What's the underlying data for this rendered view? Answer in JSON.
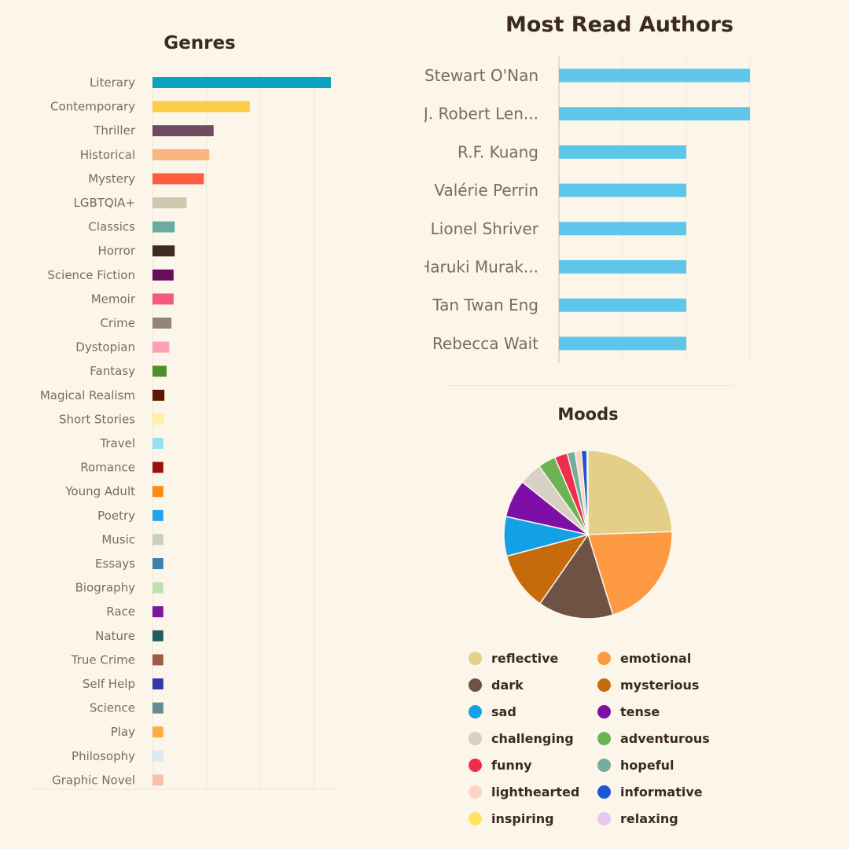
{
  "chart_data": [
    {
      "type": "bar",
      "orientation": "horizontal",
      "title": "Genres",
      "grid": true,
      "xlim": [
        0,
        33
      ],
      "categories": [
        "Literary",
        "Contemporary",
        "Thriller",
        "Historical",
        "Mystery",
        "LGBTQIA+",
        "Classics",
        "Horror",
        "Science Fiction",
        "Memoir",
        "Crime",
        "Dystopian",
        "Fantasy",
        "Magical Realism",
        "Short Stories",
        "Travel",
        "Romance",
        "Young Adult",
        "Poetry",
        "Music",
        "Essays",
        "Biography",
        "Race",
        "Nature",
        "True Crime",
        "Self Help",
        "Science",
        "Play",
        "Philosophy",
        "Graphic Novel"
      ],
      "values": [
        33,
        18,
        11.3,
        10.5,
        9.5,
        6.3,
        4.1,
        4.1,
        3.9,
        3.9,
        3.5,
        3.1,
        2.6,
        2.2,
        2.2,
        2,
        2,
        2,
        2,
        2,
        2,
        2,
        2,
        2,
        2,
        2,
        2,
        2,
        2,
        2
      ],
      "colors": [
        "#0ba3bf",
        "#fccd49",
        "#6e4b5e",
        "#f7b57f",
        "#fc5e3f",
        "#cfc7b0",
        "#6aaca1",
        "#3f2a22",
        "#680c5c",
        "#f05b7e",
        "#958378",
        "#f8a1b8",
        "#4f9127",
        "#5c1606",
        "#fef0a6",
        "#97e0f0",
        "#9c0f10",
        "#fb8b18",
        "#1ea4ec",
        "#c7cfc1",
        "#3f7eab",
        "#bde0b1",
        "#7e169c",
        "#1c5f5c",
        "#a05b47",
        "#3337a9",
        "#668b92",
        "#ffab41",
        "#dceaf0",
        "#f7c0a8"
      ]
    },
    {
      "type": "bar",
      "orientation": "horizontal",
      "title": "Most Read Authors",
      "grid": true,
      "xlim": [
        0,
        3
      ],
      "categories": [
        "Stewart O'Nan",
        "J. Robert Len...",
        "R.F. Kuang",
        "Valérie Perrin",
        "Lionel Shriver",
        "Haruki Murak...",
        "Tan Twan Eng",
        "Rebecca Wait"
      ],
      "values": [
        3,
        3,
        2,
        2,
        2,
        2,
        2,
        2
      ],
      "colors": [
        "#5ec6ea"
      ]
    },
    {
      "type": "pie",
      "title": "Moods",
      "legend": "bottom",
      "labels": [
        "reflective",
        "emotional",
        "dark",
        "mysterious",
        "sad",
        "tense",
        "challenging",
        "adventurous",
        "funny",
        "hopeful",
        "lighthearted",
        "informative",
        "inspiring",
        "relaxing"
      ],
      "values": [
        24.5,
        20.8,
        14.5,
        11.2,
        7.6,
        7.3,
        4.4,
        3.4,
        2.5,
        1.5,
        1.2,
        1.1,
        0.1,
        0.1
      ],
      "colors": [
        "#e3cf87",
        "#fd9a41",
        "#6e5244",
        "#c66b0c",
        "#14a0e6",
        "#7e0fa6",
        "#d9d0c5",
        "#6db355",
        "#ef2d4f",
        "#72ad9d",
        "#fcd4c5",
        "#1a56d6",
        "#ffe35e",
        "#e5c7f0"
      ]
    }
  ]
}
